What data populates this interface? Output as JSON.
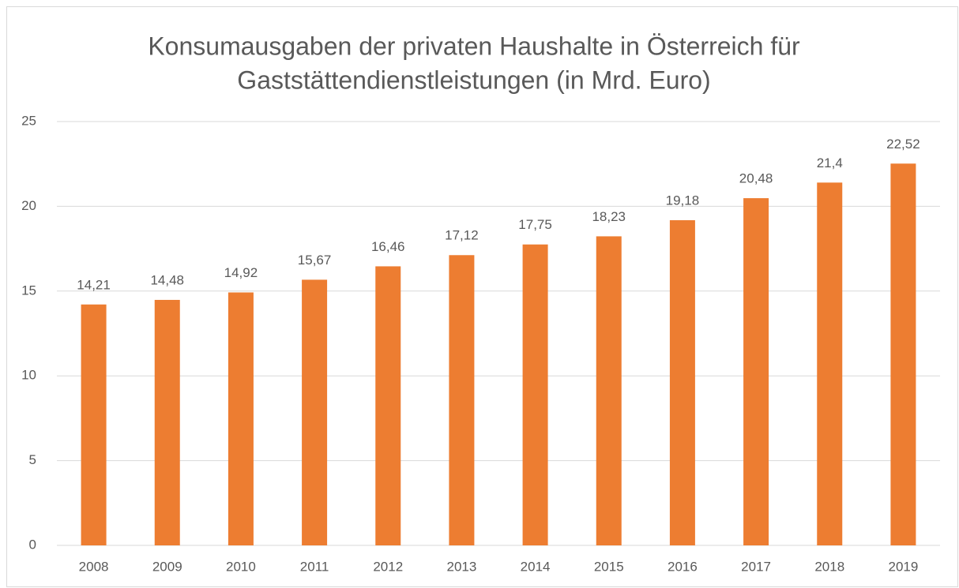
{
  "chart_data": {
    "type": "bar",
    "title": [
      "Konsumausgaben der privaten Haushalte in Österreich für",
      "Gaststättendienstleistungen (in Mrd. Euro)"
    ],
    "categories": [
      "2008",
      "2009",
      "2010",
      "2011",
      "2012",
      "2013",
      "2014",
      "2015",
      "2016",
      "2017",
      "2018",
      "2019"
    ],
    "values": [
      14.21,
      14.48,
      14.92,
      15.67,
      16.46,
      17.12,
      17.75,
      18.23,
      19.18,
      20.48,
      21.4,
      22.52
    ],
    "value_labels": [
      "14,21",
      "14,48",
      "14,92",
      "15,67",
      "16,46",
      "17,12",
      "17,75",
      "18,23",
      "19,18",
      "20,48",
      "21,4",
      "22,52"
    ],
    "color": "#ed7d31",
    "ylim": [
      0,
      25
    ],
    "yticks": [
      0,
      5,
      10,
      15,
      20,
      25
    ],
    "grid": true
  }
}
